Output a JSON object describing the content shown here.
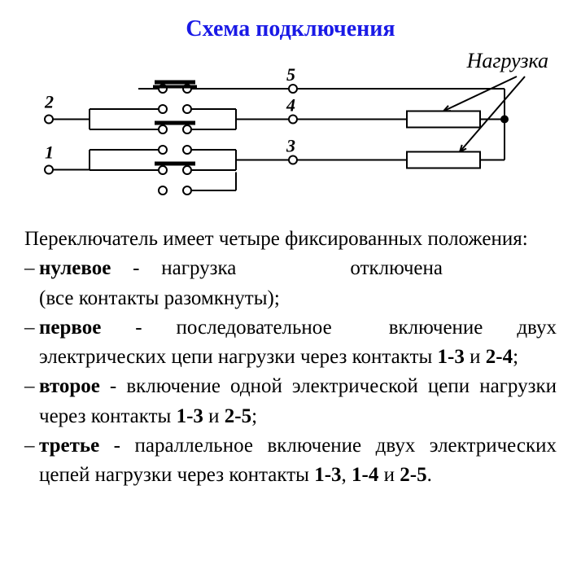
{
  "title": {
    "text": "Схема подключения",
    "color": "#1a1ae6"
  },
  "load_label": "Нагрузка",
  "diagram": {
    "terminals": {
      "t1": "1",
      "t2": "2",
      "t3": "3",
      "t4": "4",
      "t5": "5"
    },
    "stroke": "#000000",
    "stroke_width": 2,
    "terminal_font_size": 22,
    "terminal_font_style": "italic",
    "terminal_font_weight": "bold",
    "circle_r": 5,
    "dot_r": 5
  },
  "positions_intro": "Переключатель имеет четыре фиксированных положения:",
  "positions": [
    {
      "name": "нулевое",
      "sep": " - ",
      "tail_html": "нагрузка<span class=\"gap\" style=\"width:140px\"></span>отключена<span class=\"gap\" style=\"width:140px\"></span>(все контакты разомкнуты);"
    },
    {
      "name": "первое",
      "sep": " - ",
      "tail_html": "последовательное<span class=\"gap\" style=\"width:70px\"></span>включение двух электрических цепи нагрузки через контакты <b>1-3</b> и <b>2-4</b>;"
    },
    {
      "name": "второе",
      "sep": " - ",
      "tail_html": "включение одной электрической цепи нагрузки через контакты <b>1-3</b> и <b>2-5</b>;"
    },
    {
      "name": "третье",
      "sep": " - ",
      "tail_html": "параллельное включение двух электрических цепей нагрузки через контакты <b>1-3</b>, <b>1-4</b> и <b>2-5</b>."
    }
  ],
  "text_color": "#000000",
  "background": "#ffffff",
  "font_family": "Times New Roman"
}
